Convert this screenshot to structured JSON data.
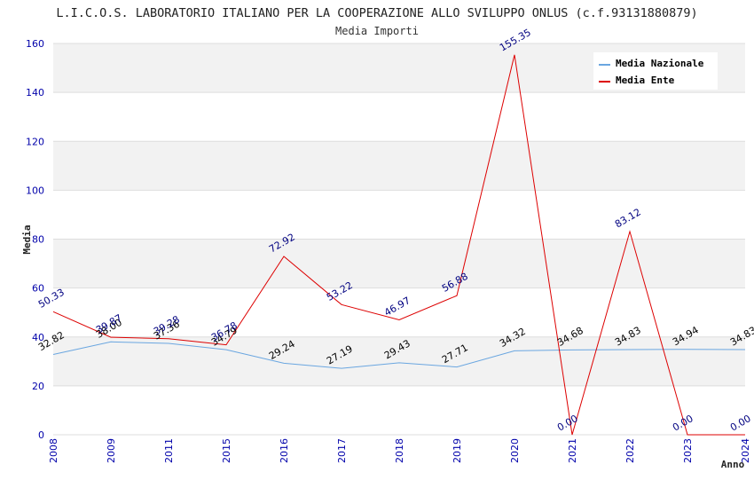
{
  "chart_data": {
    "type": "line",
    "title": "L.I.C.O.S. LABORATORIO ITALIANO PER LA COOPERAZIONE ALLO SVILUPPO ONLUS (c.f.93131880879)",
    "subtitle": "Media Importi",
    "xlabel": "Anno",
    "ylabel": "Media",
    "ylim": [
      0,
      160
    ],
    "yticks": [
      "0",
      "20",
      "40",
      "60",
      "80",
      "100",
      "120",
      "140",
      "160"
    ],
    "categories": [
      "2008",
      "2009",
      "2011",
      "2015",
      "2016",
      "2017",
      "2018",
      "2019",
      "2020",
      "2021",
      "2022",
      "2023",
      "2024"
    ],
    "legend_position": "top-right",
    "series": [
      {
        "name": "Media Nazionale",
        "color": "#6aa6e0",
        "label_color": "#000000",
        "values": [
          32.82,
          38.0,
          37.36,
          34.79,
          29.24,
          27.19,
          29.43,
          27.71,
          34.32,
          34.68,
          34.83,
          34.94,
          34.83
        ],
        "labels": [
          "32.82",
          "38.00",
          "37.36",
          "34.79",
          "29.24",
          "27.19",
          "29.43",
          "27.71",
          "34.32",
          "34.68",
          "34.83",
          "34.94",
          "34.83"
        ]
      },
      {
        "name": "Media Ente",
        "color": "#dd0000",
        "label_color": "#000080",
        "values": [
          50.33,
          39.87,
          39.28,
          36.78,
          72.92,
          53.22,
          46.97,
          56.88,
          155.35,
          0.0,
          83.12,
          0.0,
          0.0
        ],
        "labels": [
          "50.33",
          "39.87",
          "39.28",
          "36.78",
          "72.92",
          "53.22",
          "46.97",
          "56.88",
          "155.35",
          "0.00",
          "83.12",
          "0.00",
          "0.00"
        ]
      }
    ]
  },
  "colors": {
    "band": "#f2f2f2",
    "grid": "#dddddd",
    "tick_text": "#0000aa",
    "axis": "#999999"
  }
}
